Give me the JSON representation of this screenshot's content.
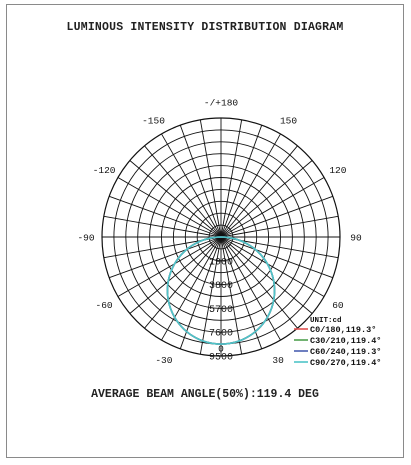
{
  "chart_data": {
    "type": "polar",
    "title": "LUMINOUS INTENSITY DISTRIBUTION DIAGRAM",
    "angle_ticks": [
      "-/+180",
      "150",
      "120",
      "90",
      "60",
      "30",
      "0",
      "-30",
      "-60",
      "-90",
      "-120",
      "-150"
    ],
    "radial_ticks": [
      1900,
      3800,
      5700,
      7600,
      9500
    ],
    "rmax": 9500,
    "unit_label": "UNIT:cd",
    "series": [
      {
        "name": "C0/180,119.3°",
        "color": "#e05050",
        "peak_cd": 8550,
        "beam_angle": 119.3
      },
      {
        "name": "C30/210,119.4°",
        "color": "#4fa04f",
        "peak_cd": 8550,
        "beam_angle": 119.4
      },
      {
        "name": "C60/240,119.3°",
        "color": "#4a5fb0",
        "peak_cd": 8550,
        "beam_angle": 119.3
      },
      {
        "name": "C90/270,119.4°",
        "color": "#4fc4c8",
        "peak_cd": 8550,
        "beam_angle": 119.4
      }
    ],
    "average_beam_angle_text": "AVERAGE BEAM ANGLE(50%):119.4 DEG"
  }
}
